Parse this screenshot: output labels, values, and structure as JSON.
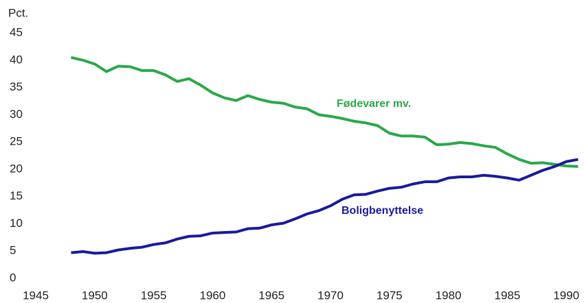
{
  "chart_data": {
    "type": "line",
    "y_label": "Pct.",
    "x": [
      1948,
      1949,
      1950,
      1951,
      1952,
      1953,
      1954,
      1955,
      1956,
      1957,
      1958,
      1959,
      1960,
      1961,
      1962,
      1963,
      1964,
      1965,
      1966,
      1967,
      1968,
      1969,
      1970,
      1971,
      1972,
      1973,
      1974,
      1975,
      1976,
      1977,
      1978,
      1979,
      1980,
      1981,
      1982,
      1983,
      1984,
      1985,
      1986,
      1987,
      1988,
      1989,
      1990,
      1991
    ],
    "series": [
      {
        "name": "Fødevarer mv.",
        "color": "#2aa84a",
        "values": [
          40.5,
          40,
          39.3,
          37.9,
          38.9,
          38.8,
          38.1,
          38.1,
          37.3,
          36.1,
          36.6,
          35.4,
          34,
          33.1,
          32.6,
          33.5,
          32.8,
          32.3,
          32.1,
          31.4,
          31.1,
          30,
          29.7,
          29.3,
          28.8,
          28.5,
          28,
          26.6,
          26.1,
          26.1,
          25.9,
          24.5,
          24.6,
          24.9,
          24.7,
          24.3,
          24,
          22.8,
          21.8,
          21.1,
          21.2,
          20.9,
          20.6,
          20.5
        ]
      },
      {
        "name": "Boligbenyttelse",
        "color": "#1a1a9c",
        "values": [
          4.7,
          4.9,
          4.6,
          4.7,
          5.2,
          5.5,
          5.7,
          6.2,
          6.5,
          7.2,
          7.7,
          7.8,
          8.3,
          8.4,
          8.5,
          9.1,
          9.2,
          9.8,
          10.1,
          10.9,
          11.8,
          12.4,
          13.3,
          14.5,
          15.3,
          15.4,
          16,
          16.5,
          16.7,
          17.3,
          17.7,
          17.7,
          18.4,
          18.6,
          18.6,
          18.9,
          18.7,
          18.4,
          18,
          18.9,
          19.8,
          20.5,
          21.4,
          21.8
        ]
      }
    ],
    "xlim": [
      1945,
      1991.5
    ],
    "xticks": [
      1945,
      1950,
      1955,
      1960,
      1965,
      1970,
      1975,
      1980,
      1985,
      1990
    ],
    "ylim": [
      0,
      45
    ],
    "yticks": [
      0,
      5,
      10,
      15,
      20,
      25,
      30,
      35,
      40,
      45
    ],
    "grid": false
  }
}
